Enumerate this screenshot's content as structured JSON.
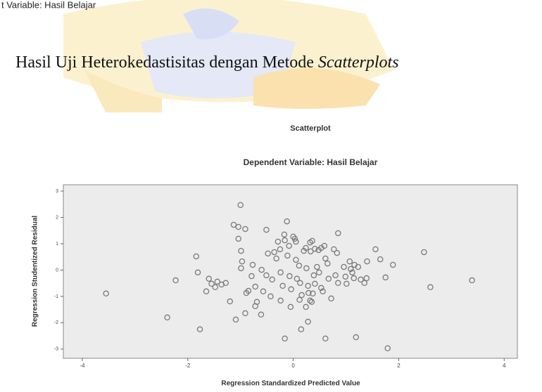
{
  "page": {
    "header_fragment": "t Variable: Hasil Belajar",
    "caption": "Hasil Uji Heterokedastisitas dengan Metode",
    "caption_italic": "Scatterplots"
  },
  "chart_data": {
    "type": "scatter",
    "title": "Scatterplot",
    "subtitle": "Dependent Variable: Hasil Belajar",
    "x_label": "Regression Standardized Predicted Value",
    "y_label": "Regression Studentized Residual",
    "xlim": [
      -4.36,
      4.25
    ],
    "ylim": [
      -3.35,
      3.24
    ],
    "xticks": [
      -4,
      -2,
      0,
      2,
      4
    ],
    "yticks": [
      -3,
      -2,
      -1,
      0,
      1,
      2,
      3
    ],
    "grid": false,
    "marker_color": "#7a7a7a",
    "x": [
      -3.55,
      -2.39,
      -2.23,
      -1.84,
      -1.81,
      -1.77,
      -1.65,
      -1.6,
      -1.55,
      -1.48,
      -1.44,
      -1.36,
      -1.28,
      -1.2,
      -1.13,
      -1.04,
      -1.09,
      -1.0,
      -1.04,
      -0.99,
      -0.97,
      -0.99,
      -0.89,
      -0.85,
      -0.91,
      -0.77,
      -0.79,
      -0.72,
      -0.69,
      -0.72,
      -0.91,
      -0.6,
      -0.57,
      -0.61,
      -0.51,
      -0.48,
      -0.51,
      -0.4,
      -0.43,
      -0.36,
      -0.32,
      -0.29,
      -0.25,
      -0.24,
      -0.2,
      -0.24,
      -0.17,
      -0.16,
      -0.12,
      -0.08,
      -0.11,
      -0.07,
      -0.04,
      -0.05,
      -0.16,
      0,
      0.03,
      0.05,
      0.05,
      0.11,
      0.07,
      0.13,
      0.16,
      0.12,
      0.15,
      0.2,
      0.24,
      0.25,
      0.28,
      0.29,
      0.24,
      0.32,
      0.36,
      0.33,
      0.41,
      0.48,
      0.53,
      0.59,
      0.39,
      0.41,
      0.37,
      0.32,
      0.35,
      0.28,
      0.45,
      0.49,
      0.53,
      0.56,
      0.61,
      0.65,
      0.67,
      0.72,
      0.61,
      0.77,
      0.83,
      0.8,
      0.85,
      0.85,
      0.96,
      0.99,
      1.01,
      1.07,
      1.09,
      1.12,
      1.15,
      1.16,
      1.23,
      1.19,
      1.28,
      1.35,
      1.39,
      1.4,
      1.56,
      1.65,
      1.75,
      1.79,
      1.89,
      2.48,
      2.6,
      3.39
    ],
    "y": [
      -0.89,
      -1.8,
      -0.39,
      0.52,
      -0.09,
      -2.25,
      -0.81,
      -0.33,
      -0.52,
      -0.65,
      -0.44,
      -0.55,
      -0.49,
      -1.19,
      1.72,
      1.64,
      -1.88,
      2.47,
      1.19,
      0.73,
      0.33,
      0.07,
      -0.87,
      -0.79,
      -1.64,
      0.2,
      -0.23,
      -0.63,
      -1.21,
      -1.37,
      1.56,
      0.01,
      -0.81,
      -1.69,
      1.53,
      0.63,
      -0.2,
      -0.36,
      -1.0,
      0.68,
      0.44,
      1.08,
      0.79,
      -0.09,
      -0.6,
      -1.16,
      1.35,
      1.13,
      1.85,
      0.92,
      0.55,
      -0.23,
      -0.73,
      -1.4,
      -2.6,
      1.27,
      1.19,
      1.08,
      0.39,
      0.17,
      -0.33,
      -0.49,
      -0.95,
      -1.13,
      -2.25,
      0.73,
      0.84,
      0.07,
      -0.6,
      -0.87,
      -1.4,
      1.05,
      1.11,
      0.71,
      0.81,
      0.76,
      0.84,
      0.92,
      -0.2,
      -0.52,
      -0.89,
      -1.16,
      -1.21,
      -1.96,
      0.12,
      -0.09,
      -0.68,
      -0.81,
      0.44,
      0.25,
      -0.33,
      -1.08,
      -2.6,
      0.79,
      0.65,
      -0.2,
      -0.49,
      1.4,
      0.12,
      -0.25,
      -0.52,
      0.33,
      0.04,
      -0.09,
      -0.31,
      0.2,
      0.12,
      -2.55,
      -0.36,
      -0.49,
      -0.31,
      0.33,
      0.79,
      0.41,
      -0.28,
      -2.97,
      0.2,
      0.68,
      -0.65,
      -0.39
    ]
  }
}
